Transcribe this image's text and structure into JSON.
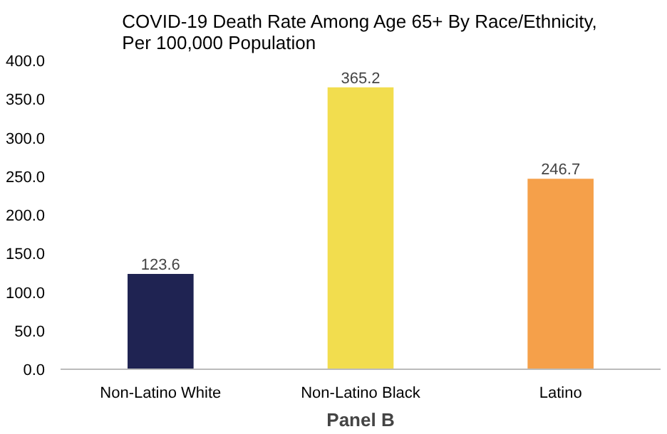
{
  "chart_data": {
    "type": "bar",
    "title": "COVID-19 Death Rate Among Age 65+ By Race/Ethnicity,\nPer 100,000 Population",
    "xlabel": "Panel B",
    "categories": [
      "Non-Latino White",
      "Non-Latino Black",
      "Latino"
    ],
    "values": [
      123.6,
      365.2,
      246.7
    ],
    "colors": [
      "#1f2352",
      "#f2dd4e",
      "#f5a04a"
    ],
    "ylim": [
      0,
      400
    ],
    "yticks": [
      {
        "value": 0,
        "label": "0.0"
      },
      {
        "value": 50,
        "label": "50.0"
      },
      {
        "value": 100,
        "label": "100.0"
      },
      {
        "value": 150,
        "label": "150.0"
      },
      {
        "value": 200,
        "label": "200.0"
      },
      {
        "value": 250,
        "label": "250.0"
      },
      {
        "value": 300,
        "label": "300.0"
      },
      {
        "value": 350,
        "label": "350.0"
      },
      {
        "value": 400,
        "label": "400.0"
      }
    ],
    "data_labels": true,
    "grid": false
  }
}
